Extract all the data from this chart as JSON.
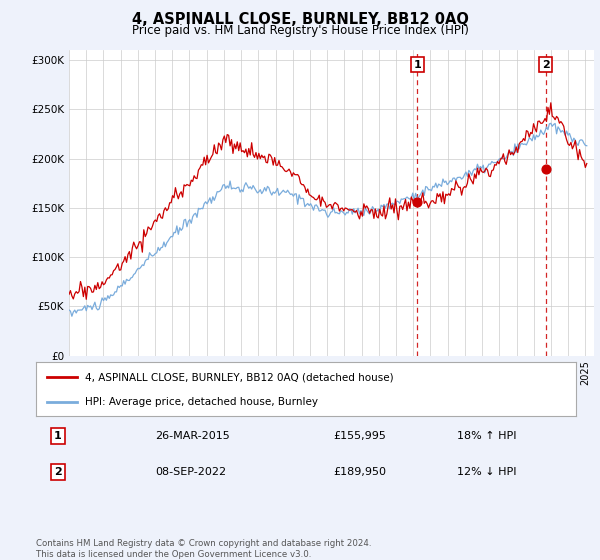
{
  "title": "4, ASPINALL CLOSE, BURNLEY, BB12 0AQ",
  "subtitle": "Price paid vs. HM Land Registry's House Price Index (HPI)",
  "ylabel_ticks": [
    "£0",
    "£50K",
    "£100K",
    "£150K",
    "£200K",
    "£250K",
    "£300K"
  ],
  "ytick_values": [
    0,
    50000,
    100000,
    150000,
    200000,
    250000,
    300000
  ],
  "ylim": [
    0,
    310000
  ],
  "xlim_start": 1995.0,
  "xlim_end": 2025.5,
  "red_color": "#cc0000",
  "blue_color": "#7aacdc",
  "vline_color": "#cc0000",
  "sale1_x": 2015.23,
  "sale1_y": 155995,
  "sale1_label": "1",
  "sale2_x": 2022.69,
  "sale2_y": 189950,
  "sale2_label": "2",
  "legend_line1": "4, ASPINALL CLOSE, BURNLEY, BB12 0AQ (detached house)",
  "legend_line2": "HPI: Average price, detached house, Burnley",
  "table_row1_num": "1",
  "table_row1_date": "26-MAR-2015",
  "table_row1_price": "£155,995",
  "table_row1_hpi": "18% ↑ HPI",
  "table_row2_num": "2",
  "table_row2_date": "08-SEP-2022",
  "table_row2_price": "£189,950",
  "table_row2_hpi": "12% ↓ HPI",
  "footer": "Contains HM Land Registry data © Crown copyright and database right 2024.\nThis data is licensed under the Open Government Licence v3.0.",
  "background_color": "#eef2fb",
  "plot_bg_color": "#ffffff"
}
